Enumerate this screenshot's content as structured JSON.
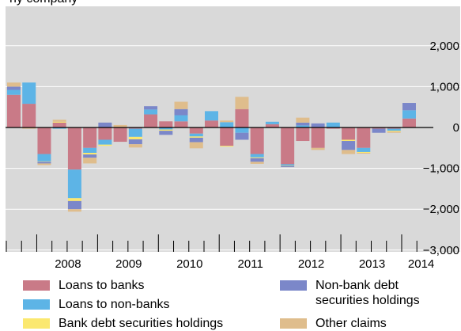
{
  "header_fragment": "ny company",
  "chart_data": {
    "type": "bar",
    "stacked": true,
    "grid": true,
    "legend_position": "bottom",
    "ylim": [
      -3100,
      2900
    ],
    "yticks": [
      2000,
      1000,
      0,
      -1000,
      -2000,
      -3000
    ],
    "ytick_labels": [
      "2,000",
      "1,000",
      "0",
      "−1,000",
      "−2,000",
      "−3,000"
    ],
    "years": [
      "2008",
      "2009",
      "2010",
      "2011",
      "2012",
      "2013",
      "2014"
    ],
    "first_quarter": "2007 Q3",
    "x": [
      "2007 Q3",
      "2007 Q4",
      "2008 Q1",
      "2008 Q2",
      "2008 Q3",
      "2008 Q4",
      "2009 Q1",
      "2009 Q2",
      "2009 Q3",
      "2009 Q4",
      "2010 Q1",
      "2010 Q2",
      "2010 Q3",
      "2010 Q4",
      "2011 Q1",
      "2011 Q2",
      "2011 Q3",
      "2011 Q4",
      "2012 Q1",
      "2012 Q2",
      "2012 Q3",
      "2012 Q4",
      "2013 Q1",
      "2013 Q2",
      "2013 Q3",
      "2013 Q4",
      "2014 Q1"
    ],
    "series": [
      {
        "name": "Loans to banks",
        "color": "#c97a87",
        "values": [
          800,
          580,
          -650,
          120,
          -1030,
          -500,
          -300,
          -350,
          -30,
          320,
          150,
          150,
          -150,
          170,
          -450,
          450,
          -650,
          80,
          -900,
          -330,
          -500,
          -30,
          -300,
          -500,
          -30,
          -30,
          220
        ]
      },
      {
        "name": "Loans to non-banks",
        "color": "#5db4e6",
        "values": [
          120,
          520,
          -180,
          -30,
          -700,
          -120,
          -120,
          0,
          -200,
          120,
          -50,
          150,
          -70,
          230,
          130,
          -130,
          -80,
          60,
          -30,
          50,
          0,
          120,
          0,
          -100,
          0,
          -50,
          200
        ]
      },
      {
        "name": "Bank debt securities holdings",
        "color": "#fbe86f",
        "values": [
          0,
          0,
          -10,
          20,
          -70,
          -40,
          -30,
          0,
          -60,
          0,
          -30,
          0,
          -30,
          0,
          -20,
          0,
          -20,
          0,
          -10,
          0,
          0,
          0,
          -30,
          -20,
          0,
          -20,
          0
        ]
      },
      {
        "name": "Non-bank debt securities holdings",
        "color": "#7b87c9",
        "values": [
          80,
          0,
          -40,
          0,
          -200,
          -80,
          120,
          0,
          -120,
          80,
          -100,
          150,
          -110,
          0,
          0,
          -170,
          -90,
          0,
          -30,
          70,
          100,
          0,
          -220,
          0,
          -100,
          0,
          180
        ]
      },
      {
        "name": "Other claims",
        "color": "#dfbd8c",
        "values": [
          100,
          -30,
          -40,
          50,
          -60,
          -140,
          0,
          60,
          -80,
          0,
          0,
          180,
          -150,
          0,
          40,
          300,
          -50,
          0,
          0,
          120,
          -50,
          0,
          -100,
          -20,
          0,
          -30,
          0
        ]
      }
    ]
  }
}
